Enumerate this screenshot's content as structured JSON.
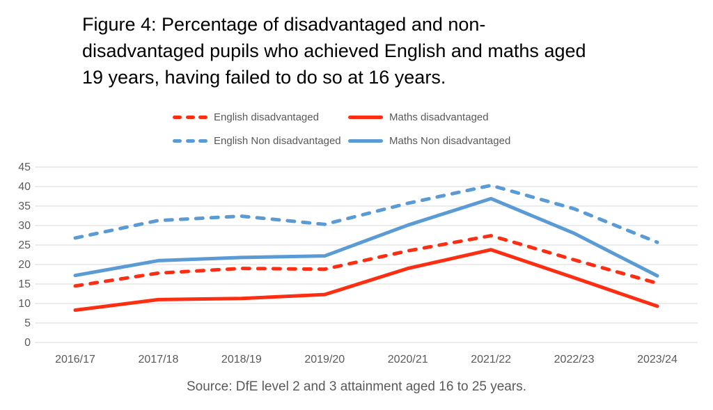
{
  "title": {
    "lines": [
      "Figure 4: Percentage of disadvantaged and non-",
      "disadvantaged pupils who achieved English and maths aged",
      "19 years, having failed to do so at 16 years."
    ]
  },
  "legend": {
    "items": [
      {
        "label": "English disadvantaged",
        "color": "#FF2D11",
        "style": "dashed"
      },
      {
        "label": "Maths disadvantaged",
        "color": "#FF2D11",
        "style": "solid"
      },
      {
        "label": "English Non disadvantaged",
        "color": "#5B9BD5",
        "style": "dashed"
      },
      {
        "label": "Maths Non disadvantaged",
        "color": "#5B9BD5",
        "style": "solid"
      }
    ]
  },
  "chart_data": {
    "type": "line",
    "categories": [
      "2016/17",
      "2017/18",
      "2018/19",
      "2019/20",
      "2020/21",
      "2021/22",
      "2022/23",
      "2023/24"
    ],
    "series": [
      {
        "name": "English disadvantaged",
        "color": "#FF2D11",
        "style": "dashed",
        "values": [
          14.5,
          17.8,
          19.0,
          18.8,
          23.5,
          27.4,
          21.2,
          15.2
        ]
      },
      {
        "name": "Maths disadvantaged",
        "color": "#FF2D11",
        "style": "solid",
        "values": [
          8.3,
          11.0,
          11.3,
          12.3,
          19.0,
          23.8,
          16.6,
          9.3
        ]
      },
      {
        "name": "English Non disadvantaged",
        "color": "#5B9BD5",
        "style": "dashed",
        "values": [
          26.8,
          31.3,
          32.4,
          30.3,
          35.7,
          40.3,
          34.3,
          25.7
        ]
      },
      {
        "name": "Maths Non disadvantaged",
        "color": "#5B9BD5",
        "style": "solid",
        "values": [
          17.2,
          21.0,
          21.8,
          22.2,
          30.1,
          36.9,
          28.0,
          17.1
        ]
      }
    ],
    "title": "Figure 4: Percentage of disadvantaged and non-disadvantaged pupils who achieved English and maths aged 19 years, having failed to do so at 16 years.",
    "xlabel": "",
    "ylabel": "",
    "ylim": [
      0,
      45
    ],
    "yticks": [
      0,
      5,
      10,
      15,
      20,
      25,
      30,
      35,
      40,
      45
    ],
    "grid": true,
    "legend_position": "top"
  },
  "source": "Source: DfE level 2 and 3 attainment aged 16 to 25 years.",
  "colors": {
    "red_series": "#FF2D11",
    "blue_series": "#5B9BD5",
    "axis_text": "#595959",
    "gridline": "#D9D9D9",
    "title_text": "#000000"
  }
}
